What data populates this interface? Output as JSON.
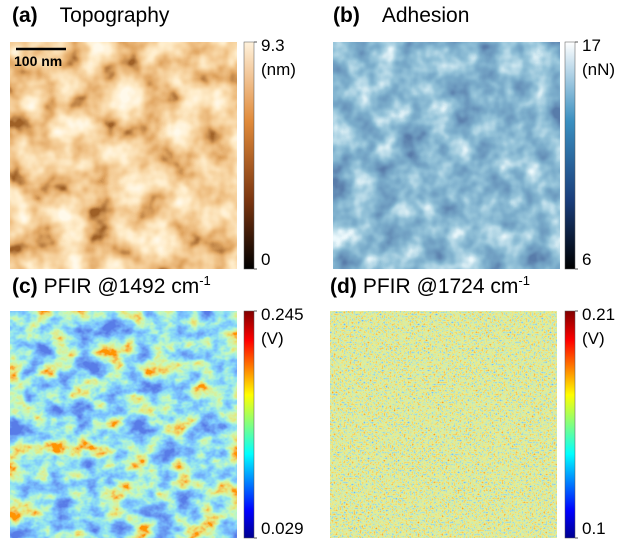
{
  "panels": [
    {
      "label": "(a)",
      "title": "Topography",
      "colorbar": {
        "max": 9.3,
        "unit": "(nm)",
        "min": 0
      },
      "scale_bar": "100 nm"
    },
    {
      "label": "(b)",
      "title": "Adhesion",
      "colorbar": {
        "max": 17,
        "unit": "(nN)",
        "min": 6
      }
    },
    {
      "label": "(c)",
      "title": "PFIR @1492 cm",
      "title_superscript": "-1",
      "colorbar": {
        "max": 0.245,
        "unit": "(V)",
        "min": 0.029
      }
    },
    {
      "label": "(d)",
      "title": "PFIR @1724 cm",
      "title_superscript": "-1",
      "colorbar": {
        "max": 0.21,
        "unit": "(V)",
        "min": 0.1
      }
    }
  ]
}
